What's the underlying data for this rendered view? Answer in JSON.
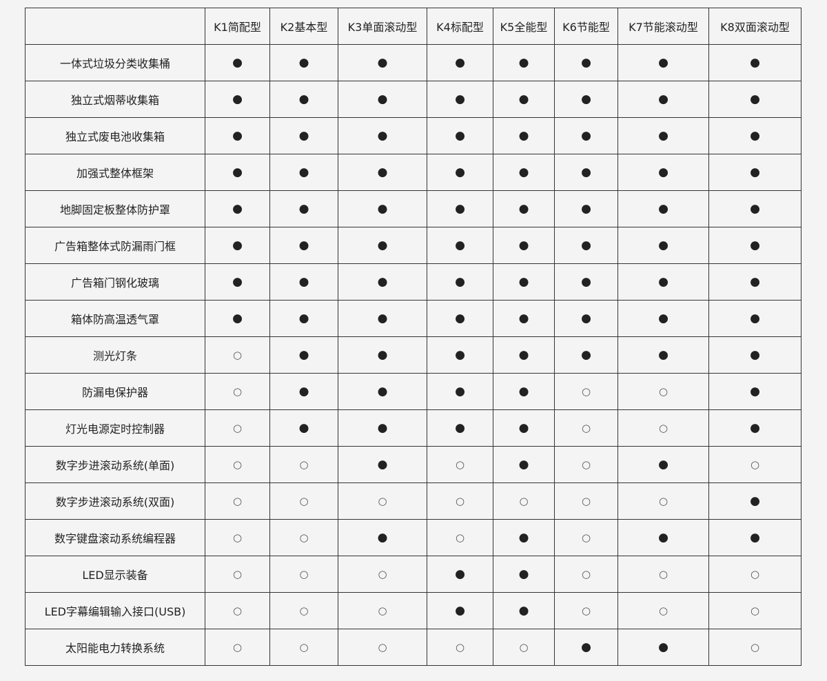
{
  "table": {
    "columns": [
      "",
      "K1简配型",
      "K2基本型",
      "K3单面滚动型",
      "K4标配型",
      "K5全能型",
      "K6节能型",
      "K7节能滚动型",
      "K8双面滚动型"
    ],
    "rows": [
      {
        "feature": "一体式垃圾分类收集桶",
        "values": [
          "●",
          "●",
          "●",
          "●",
          "●",
          "●",
          "●",
          "●"
        ]
      },
      {
        "feature": "独立式烟蒂收集箱",
        "values": [
          "●",
          "●",
          "●",
          "●",
          "●",
          "●",
          "●",
          "●"
        ]
      },
      {
        "feature": "独立式废电池收集箱",
        "values": [
          "●",
          "●",
          "●",
          "●",
          "●",
          "●",
          "●",
          "●"
        ]
      },
      {
        "feature": "加强式整体框架",
        "values": [
          "●",
          "●",
          "●",
          "●",
          "●",
          "●",
          "●",
          "●"
        ]
      },
      {
        "feature": "地脚固定板整体防护罩",
        "values": [
          "●",
          "●",
          "●",
          "●",
          "●",
          "●",
          "●",
          "●"
        ]
      },
      {
        "feature": "广告箱整体式防漏雨门框",
        "values": [
          "●",
          "●",
          "●",
          "●",
          "●",
          "●",
          "●",
          "●"
        ]
      },
      {
        "feature": "广告箱门钢化玻璃",
        "values": [
          "●",
          "●",
          "●",
          "●",
          "●",
          "●",
          "●",
          "●"
        ]
      },
      {
        "feature": "箱体防高温透气罩",
        "values": [
          "●",
          "●",
          "●",
          "●",
          "●",
          "●",
          "●",
          "●"
        ]
      },
      {
        "feature": "测光灯条",
        "values": [
          "○",
          "●",
          "●",
          "●",
          "●",
          "●",
          "●",
          "●"
        ]
      },
      {
        "feature": "防漏电保护器",
        "values": [
          "○",
          "●",
          "●",
          "●",
          "●",
          "○",
          "○",
          "●"
        ]
      },
      {
        "feature": "灯光电源定时控制器",
        "values": [
          "○",
          "●",
          "●",
          "●",
          "●",
          "○",
          "○",
          "●"
        ]
      },
      {
        "feature": "数字步进滚动系统(单面)",
        "values": [
          "○",
          "○",
          "●",
          "○",
          "●",
          "○",
          "●",
          "○"
        ]
      },
      {
        "feature": "数字步进滚动系统(双面)",
        "values": [
          "○",
          "○",
          "○",
          "○",
          "○",
          "○",
          "○",
          "●"
        ]
      },
      {
        "feature": "数字键盘滚动系统编程器",
        "values": [
          "○",
          "○",
          "●",
          "○",
          "●",
          "○",
          "●",
          "●"
        ]
      },
      {
        "feature": "LED显示装备",
        "values": [
          "○",
          "○",
          "○",
          "●",
          "●",
          "○",
          "○",
          "○"
        ]
      },
      {
        "feature": "LED字幕编辑输入接口(USB)",
        "values": [
          "○",
          "○",
          "○",
          "●",
          "●",
          "○",
          "○",
          "○"
        ]
      },
      {
        "feature": "太阳能电力转换系统",
        "values": [
          "○",
          "○",
          "○",
          "○",
          "○",
          "●",
          "●",
          "○"
        ]
      }
    ]
  }
}
